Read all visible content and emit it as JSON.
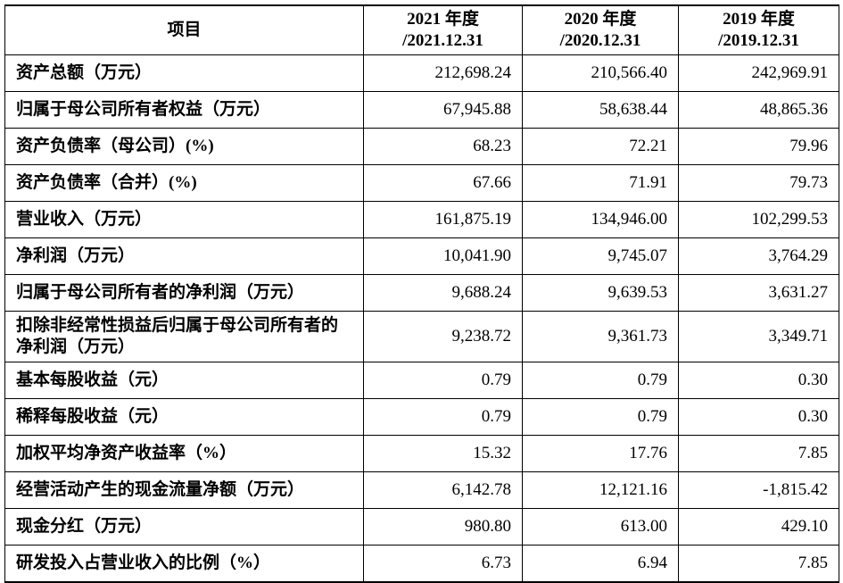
{
  "table": {
    "header": [
      [
        "项目"
      ],
      [
        "2021 年度",
        "/2021.12.31"
      ],
      [
        "2020 年度",
        "/2020.12.31"
      ],
      [
        "2019 年度",
        "/2019.12.31"
      ]
    ],
    "rows": [
      [
        "资产总额（万元）",
        "212,698.24",
        "210,566.40",
        "242,969.91"
      ],
      [
        "归属于母公司所有者权益（万元）",
        "67,945.88",
        "58,638.44",
        "48,865.36"
      ],
      [
        "资产负债率（母公司）(%)",
        "68.23",
        "72.21",
        "79.96"
      ],
      [
        "资产负债率（合并）(%)",
        "67.66",
        "71.91",
        "79.73"
      ],
      [
        "营业收入（万元）",
        "161,875.19",
        "134,946.00",
        "102,299.53"
      ],
      [
        "净利润（万元）",
        "10,041.90",
        "9,745.07",
        "3,764.29"
      ],
      [
        "归属于母公司所有者的净利润（万元）",
        "9,688.24",
        "9,639.53",
        "3,631.27"
      ],
      [
        "扣除非经常性损益后归属于母公司所有者的净利润（万元）",
        "9,238.72",
        "9,361.73",
        "3,349.71"
      ],
      [
        "基本每股收益（元）",
        "0.79",
        "0.79",
        "0.30"
      ],
      [
        "稀释每股收益（元）",
        "0.79",
        "0.79",
        "0.30"
      ],
      [
        "加权平均净资产收益率（%）",
        "15.32",
        "17.76",
        "7.85"
      ],
      [
        "经营活动产生的现金流量净额（万元）",
        "6,142.78",
        "12,121.16",
        "-1,815.42"
      ],
      [
        "现金分红（万元）",
        "980.80",
        "613.00",
        "429.10"
      ],
      [
        "研发投入占营业收入的比例（%）",
        "6.73",
        "6.94",
        "7.85"
      ]
    ]
  }
}
